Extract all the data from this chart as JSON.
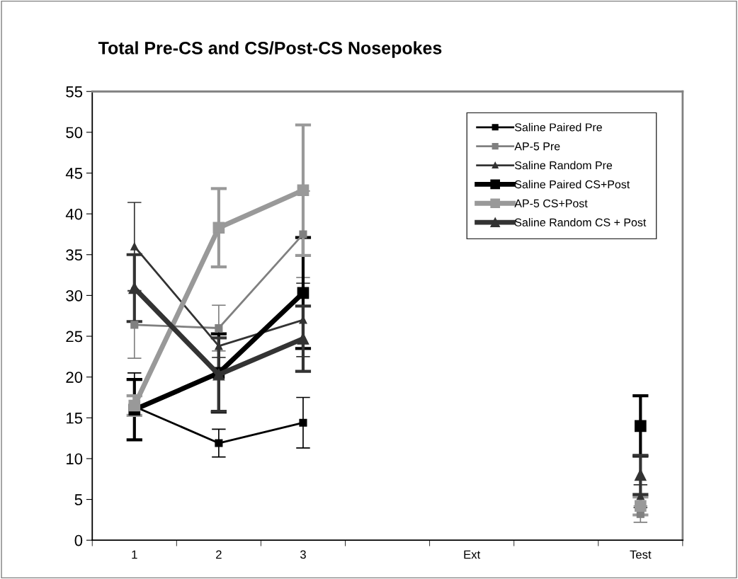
{
  "chart_data": {
    "type": "line",
    "title": "Total Pre-CS and CS/Post-CS Nosepokes",
    "categories": [
      "1",
      "2",
      "3",
      null,
      "Ext",
      null,
      "Test"
    ],
    "ylim": [
      0,
      55
    ],
    "yticks": [
      0,
      5,
      10,
      15,
      20,
      25,
      30,
      35,
      40,
      45,
      50,
      55
    ],
    "grid": false,
    "legend": "top right",
    "series": [
      {
        "name": "Saline Paired Pre",
        "color": "#000000",
        "marker": "square",
        "values": [
          16.4,
          11.9,
          14.4,
          null,
          null,
          null,
          null
        ],
        "errors": [
          4.1,
          1.7,
          3.1,
          null,
          null,
          null,
          null
        ]
      },
      {
        "name": "AP-5 Pre",
        "color": "#808080",
        "marker": "square",
        "values": [
          26.4,
          26.0,
          37.5,
          null,
          null,
          null,
          3.2
        ],
        "errors": [
          4.1,
          2.8,
          5.3,
          null,
          null,
          null,
          1.0
        ]
      },
      {
        "name": "Saline Random Pre",
        "color": "#333333",
        "marker": "triangle",
        "values": [
          36.0,
          23.8,
          27.0,
          null,
          null,
          null,
          5.4
        ],
        "errors": [
          5.4,
          1.4,
          4.5,
          null,
          null,
          null,
          1.4
        ]
      },
      {
        "name": "Saline Paired CS+Post",
        "color": "#000000",
        "marker": "square",
        "values": [
          16.0,
          20.5,
          30.3,
          null,
          null,
          null,
          14.0
        ],
        "errors": [
          3.7,
          4.8,
          6.8,
          null,
          null,
          null,
          3.7
        ]
      },
      {
        "name": "AP-5 CS+Post",
        "color": "#999999",
        "marker": "square",
        "values": [
          16.5,
          38.3,
          42.9,
          null,
          null,
          null,
          4.2
        ],
        "errors": [
          1.2,
          4.8,
          8.0,
          null,
          null,
          null,
          1.1
        ]
      },
      {
        "name": "Saline Random CS + Post",
        "color": "#333333",
        "marker": "triangle",
        "values": [
          30.9,
          20.3,
          24.7,
          null,
          null,
          null,
          8.0
        ],
        "errors": [
          4.1,
          4.5,
          4.0,
          null,
          null,
          null,
          2.4
        ]
      }
    ]
  }
}
